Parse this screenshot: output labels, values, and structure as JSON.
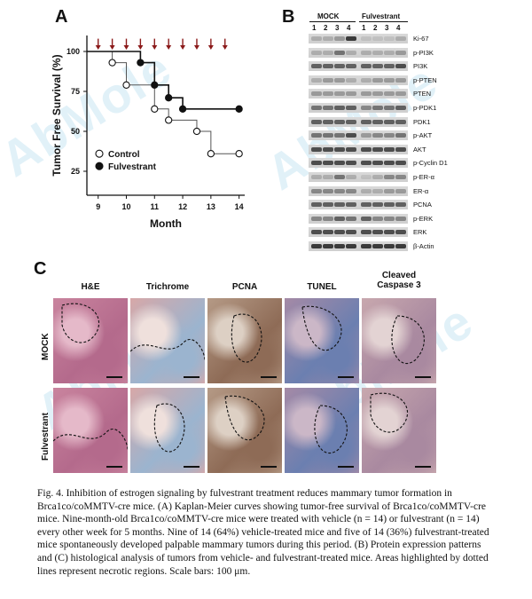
{
  "panels": {
    "a": "A",
    "b": "B",
    "c": "C"
  },
  "watermark": "AbMole",
  "chart_data": {
    "type": "line",
    "xlabel": "Month",
    "ylabel": "Tumor Free Survival (%)",
    "xlim": [
      8.6,
      14.2
    ],
    "ylim": [
      10,
      110
    ],
    "xticks": [
      "9",
      "10",
      "11",
      "12",
      "13",
      "14"
    ],
    "yticks": [
      "25",
      "50",
      "75",
      "100"
    ],
    "treatment_arrow_months": [
      9,
      9.5,
      10,
      10.5,
      11,
      11.5,
      12,
      12.5,
      13,
      13.5
    ],
    "series": [
      {
        "name": "Control",
        "marker": "open-circle",
        "x": [
          8.6,
          9.5,
          9.5,
          10,
          10,
          11,
          11,
          11.5,
          11.5,
          12.5,
          12.5,
          13,
          13,
          14
        ],
        "y": [
          100,
          100,
          93,
          93,
          79,
          79,
          64,
          64,
          57,
          57,
          50,
          50,
          36,
          36
        ],
        "points": [
          [
            9.5,
            93
          ],
          [
            10,
            79
          ],
          [
            11,
            64
          ],
          [
            11.5,
            57
          ],
          [
            12.5,
            50
          ],
          [
            13,
            36
          ],
          [
            14,
            36
          ]
        ]
      },
      {
        "name": "Fulvestrant",
        "marker": "filled-circle",
        "x": [
          8.6,
          10.5,
          10.5,
          11,
          11,
          11.5,
          11.5,
          12,
          12,
          14
        ],
        "y": [
          100,
          100,
          93,
          93,
          79,
          79,
          71,
          71,
          64,
          64
        ],
        "points": [
          [
            10.5,
            93
          ],
          [
            11,
            79
          ],
          [
            11.5,
            71
          ],
          [
            12,
            64
          ],
          [
            14,
            64
          ]
        ]
      }
    ],
    "legend": [
      "Control",
      "Fulvestrant"
    ]
  },
  "western_blot": {
    "groups": [
      "MOCK",
      "Fulvestrant"
    ],
    "lanes": [
      "1",
      "2",
      "3",
      "4",
      "1",
      "2",
      "3",
      "4"
    ],
    "labels": [
      "Ki-67",
      "p-PI3K",
      "PI3K",
      "p-PTEN",
      "PTEN",
      "p-PDK1",
      "PDK1",
      "p-AKT",
      "AKT",
      "p-Cyclin D1",
      "p-ER-α",
      "ER-α",
      "PCNA",
      "p-ERK",
      "ERK",
      "β-Actin"
    ]
  },
  "histology": {
    "columns": [
      "H&E",
      "Trichrome",
      "PCNA",
      "TUNEL",
      "Cleaved\nCaspase 3"
    ],
    "rows": [
      "MOCK",
      "Fulvestrant"
    ]
  },
  "caption": "Fig. 4. Inhibition of estrogen signaling by fulvestrant treatment reduces mammary tumor formation in Brca1co/coMMTV-cre mice. (A) Kaplan-Meier curves showing tumor-free survival of Brca1co/coMMTV-cre mice. Nine-month-old Brca1co/coMMTV-cre mice were treated with vehicle (n = 14) or fulvestrant (n = 14) every other week for  5 months. Nine of 14 (64%) vehicle-treated mice and five of 14 (36%) fulvestrant-treated mice spontaneously developed palpable mammary tumors during this period. (B) Protein  expression patterns and (C) histological analysis of tumors from vehicle- and fulvestrant-treated mice. Areas highlighted by dotted lines represent necrotic regions. Scale bars:  100 μm."
}
